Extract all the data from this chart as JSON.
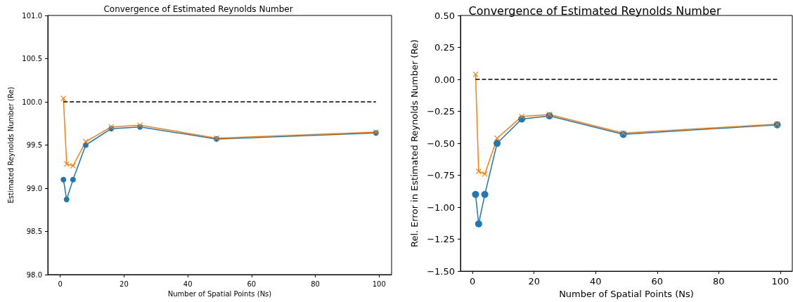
{
  "chart_data": [
    {
      "type": "line",
      "title": "Convergence of Estimated Reynolds Number",
      "xlabel": "Number of Spatial Points (Ns)",
      "ylabel": "Estimated Reynolds Number (Re)",
      "xlim": [
        -3.9,
        103.9
      ],
      "xticks": [
        0,
        20,
        40,
        60,
        80,
        100
      ],
      "ylim": [
        98.0,
        101.0
      ],
      "yticks": [
        {
          "value": 98,
          "label": "98.0"
        },
        98.5,
        {
          "value": 99,
          "label": "99.0"
        },
        99.5,
        {
          "value": 100,
          "label": "100.0"
        },
        100.5,
        {
          "value": 101,
          "label": "101.0"
        }
      ],
      "grid": false,
      "series": [
        {
          "color": "#1f77b4",
          "marker": "circle",
          "line_style": "solid",
          "x": [
            1,
            2,
            4,
            8,
            16,
            25,
            49,
            99
          ],
          "values": [
            99.1,
            98.87,
            99.1,
            99.5,
            99.69,
            99.71,
            99.57,
            99.64
          ]
        },
        {
          "color": "#ff7f0e",
          "marker": "cross",
          "line_style": "solid",
          "x": [
            1,
            2,
            4,
            8,
            16,
            25,
            49,
            99
          ],
          "values": [
            100.04,
            99.28,
            99.26,
            99.54,
            99.71,
            99.73,
            99.58,
            99.65
          ]
        },
        {
          "color": "#000000",
          "marker": "none",
          "line_style": "dashed",
          "x": [
            1,
            99
          ],
          "values": [
            100,
            100
          ]
        }
      ]
    },
    {
      "type": "line",
      "title": "Convergence of Estimated Reynolds Number",
      "xlabel": "Number of Spatial Points (Ns)",
      "ylabel": "Rel. Error in Estimated Reynolds Number (Re)",
      "xlim": [
        -3.9,
        103.9
      ],
      "xticks": [
        0,
        20,
        40,
        60,
        80,
        100
      ],
      "ylim": [
        -1.5,
        0.5
      ],
      "yticks": [
        {
          "value": -1.5,
          "label": "−1.50"
        },
        {
          "value": -1.25,
          "label": "−1.25"
        },
        {
          "value": -1,
          "label": "−1.00"
        },
        {
          "value": -0.75,
          "label": "−0.75"
        },
        {
          "value": -0.5,
          "label": "−0.50"
        },
        {
          "value": -0.25,
          "label": "−0.25"
        },
        {
          "value": 0,
          "label": "0.00"
        },
        {
          "value": 0.25,
          "label": "0.25"
        },
        {
          "value": 0.5,
          "label": "0.50"
        }
      ],
      "grid": false,
      "series": [
        {
          "color": "#1f77b4",
          "marker": "circle",
          "line_style": "solid",
          "x": [
            1,
            2,
            4,
            8,
            16,
            25,
            49,
            99
          ],
          "values": [
            -0.9,
            -1.13,
            -0.9,
            -0.5,
            -0.31,
            -0.285,
            -0.43,
            -0.355
          ]
        },
        {
          "color": "#ff7f0e",
          "marker": "cross",
          "line_style": "solid",
          "x": [
            1,
            2,
            4,
            8,
            16,
            25,
            49,
            99
          ],
          "values": [
            0.04,
            -0.72,
            -0.74,
            -0.46,
            -0.29,
            -0.275,
            -0.42,
            -0.35
          ]
        },
        {
          "color": "#000000",
          "marker": "none",
          "line_style": "dashed",
          "x": [
            1,
            99
          ],
          "values": [
            0,
            0
          ]
        }
      ]
    }
  ]
}
